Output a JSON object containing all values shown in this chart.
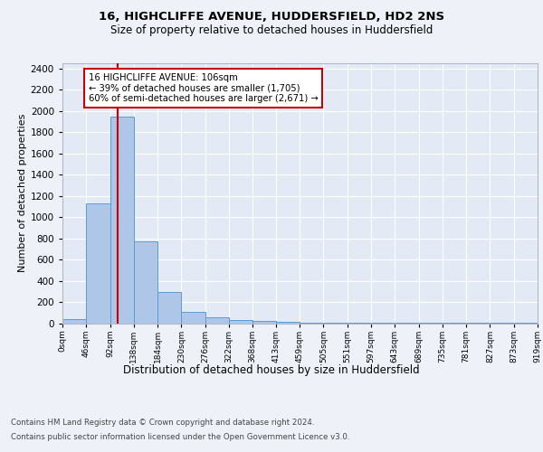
{
  "title1": "16, HIGHCLIFFE AVENUE, HUDDERSFIELD, HD2 2NS",
  "title2": "Size of property relative to detached houses in Huddersfield",
  "xlabel": "Distribution of detached houses by size in Huddersfield",
  "ylabel": "Number of detached properties",
  "bin_edges": [
    0,
    46,
    92,
    138,
    184,
    230,
    276,
    322,
    368,
    413,
    459,
    505,
    551,
    597,
    643,
    689,
    735,
    781,
    827,
    873,
    919
  ],
  "bar_heights": [
    40,
    1130,
    1950,
    775,
    295,
    105,
    55,
    30,
    20,
    10,
    8,
    5,
    4,
    3,
    2,
    2,
    1,
    1,
    1,
    1
  ],
  "bar_color": "#aec6e8",
  "bar_edge_color": "#5b9bd5",
  "property_size": 106,
  "vline_color": "#cc0000",
  "annotation_line1": "16 HIGHCLIFFE AVENUE: 106sqm",
  "annotation_line2": "← 39% of detached houses are smaller (1,705)",
  "annotation_line3": "60% of semi-detached houses are larger (2,671) →",
  "annotation_box_color": "white",
  "annotation_box_edge": "#cc0000",
  "ylim": [
    0,
    2450
  ],
  "yticks": [
    0,
    200,
    400,
    600,
    800,
    1000,
    1200,
    1400,
    1600,
    1800,
    2000,
    2200,
    2400
  ],
  "footer1": "Contains HM Land Registry data © Crown copyright and database right 2024.",
  "footer2": "Contains public sector information licensed under the Open Government Licence v3.0.",
  "background_color": "#eef2f8",
  "plot_background": "#e4eaf5"
}
